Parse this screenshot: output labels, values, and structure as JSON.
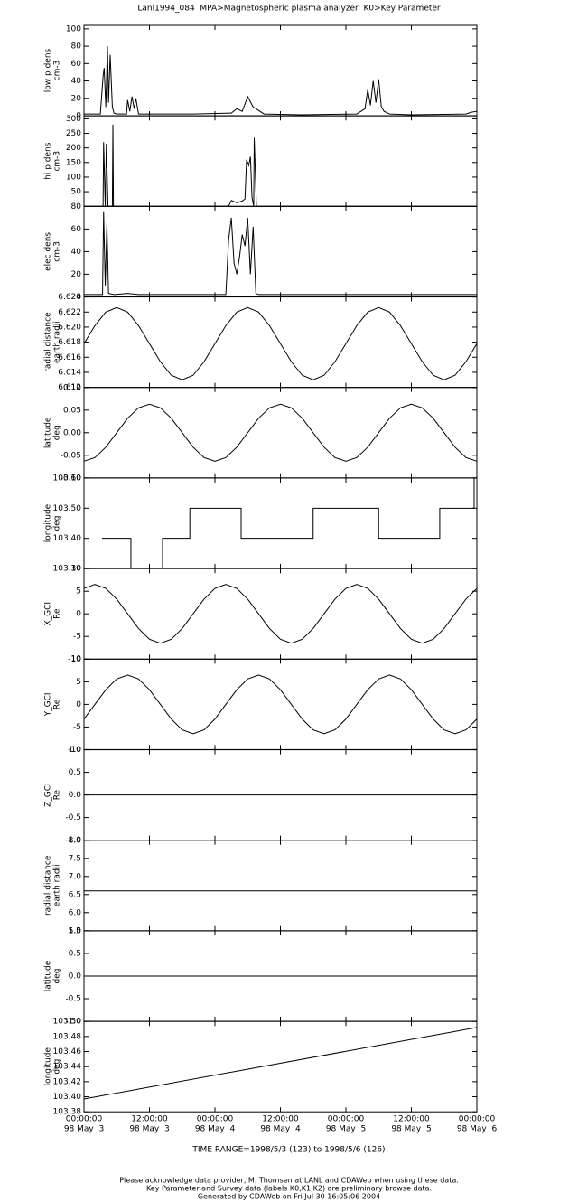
{
  "title": "Lanl1994_084  MPA>Magnetospheric plasma analyzer  K0>Key Parameter",
  "time_axis": {
    "xlim": [
      0,
      72
    ],
    "xticks": [
      {
        "value": 0,
        "label": [
          "00:00:00",
          "98 May  3"
        ]
      },
      {
        "value": 12,
        "label": [
          "12:00:00",
          "98 May  3"
        ]
      },
      {
        "value": 24,
        "label": [
          "00:00:00",
          "98 May  4"
        ]
      },
      {
        "value": 36,
        "label": [
          "12:00:00",
          "98 May  4"
        ]
      },
      {
        "value": 48,
        "label": [
          "00:00:00",
          "98 May  5"
        ]
      },
      {
        "value": 60,
        "label": [
          "12:00:00",
          "98 May  5"
        ]
      },
      {
        "value": 72,
        "label": [
          "00:00:00",
          "98 May  6"
        ]
      }
    ]
  },
  "chart_data": [
    {
      "type": "line",
      "ylabel": [
        "low p dens",
        "cm-3"
      ],
      "ylim": [
        0,
        104
      ],
      "yticks": [
        0,
        20,
        40,
        60,
        80,
        100
      ],
      "x": [
        0,
        3,
        3.5,
        3.7,
        4,
        4.3,
        4.5,
        4.8,
        5.2,
        5.5,
        6,
        7.8,
        8,
        8.4,
        8.8,
        9.2,
        9.5,
        10,
        20,
        27,
        28,
        29,
        30,
        31,
        32,
        33,
        40,
        50,
        51.5,
        52,
        52.5,
        53,
        53.5,
        54,
        54.5,
        55,
        56,
        60,
        70,
        71,
        72
      ],
      "values": [
        2,
        2,
        45,
        55,
        10,
        80,
        15,
        70,
        10,
        3,
        2,
        2,
        18,
        5,
        22,
        8,
        20,
        2,
        2,
        3,
        8,
        5,
        22,
        10,
        6,
        2,
        1,
        2,
        8,
        30,
        12,
        40,
        15,
        42,
        10,
        5,
        2,
        1,
        2,
        4,
        5
      ]
    },
    {
      "type": "line",
      "ylabel": [
        "hi p dens",
        "cm-3"
      ],
      "ylim": [
        0,
        310
      ],
      "yticks": [
        50,
        100,
        150,
        200,
        250,
        300
      ],
      "x": [
        0,
        3.5,
        3.6,
        3.9,
        4.1,
        4.4,
        5.2,
        5.3,
        5.4,
        26.5,
        27,
        28,
        29,
        29.5,
        29.8,
        30.2,
        30.5,
        30.8,
        31.1,
        31.2,
        31.6,
        31.7,
        31.8,
        72
      ],
      "values": [
        0,
        0,
        220,
        0,
        215,
        0,
        0,
        280,
        0,
        0,
        20,
        12,
        18,
        25,
        160,
        140,
        170,
        30,
        0,
        235,
        0,
        0,
        0,
        0
      ]
    },
    {
      "type": "line",
      "ylabel": [
        "elec dens",
        "cm-3"
      ],
      "ylim": [
        0,
        80
      ],
      "yticks": [
        0,
        20,
        40,
        60,
        80
      ],
      "x": [
        0,
        3.4,
        3.6,
        3.9,
        4.2,
        4.5,
        5.5,
        8,
        10,
        26,
        26.5,
        27,
        27.5,
        28,
        28.5,
        29,
        29.5,
        30,
        30.5,
        31,
        31.5,
        32,
        40,
        72
      ],
      "values": [
        2,
        2,
        75,
        10,
        65,
        3,
        2,
        3,
        2,
        2,
        50,
        70,
        30,
        20,
        35,
        55,
        45,
        70,
        20,
        62,
        3,
        2,
        2,
        2
      ]
    },
    {
      "type": "line",
      "ylabel": [
        "radial distance",
        "earth radii"
      ],
      "ylim": [
        6.612,
        6.624
      ],
      "yticks": [
        6.612,
        6.614,
        6.616,
        6.618,
        {
          "value": 6.62,
          "label": "6.620"
        },
        6.622,
        6.624
      ],
      "x": [
        0,
        2,
        4,
        6,
        8,
        10,
        12,
        14,
        16,
        18,
        20,
        22,
        24,
        26,
        28,
        30,
        32,
        34,
        36,
        38,
        40,
        42,
        44,
        46,
        48,
        50,
        52,
        54,
        56,
        58,
        60,
        62,
        64,
        66,
        68,
        70,
        72
      ],
      "values": [
        6.6178,
        6.6202,
        6.622,
        6.6226,
        6.622,
        6.6202,
        6.6178,
        6.6154,
        6.6136,
        6.613,
        6.6136,
        6.6154,
        6.6178,
        6.6202,
        6.622,
        6.6226,
        6.622,
        6.6202,
        6.6178,
        6.6154,
        6.6136,
        6.613,
        6.6136,
        6.6154,
        6.6178,
        6.6202,
        6.622,
        6.6226,
        6.622,
        6.6202,
        6.6178,
        6.6154,
        6.6136,
        6.613,
        6.6136,
        6.6154,
        6.6178
      ]
    },
    {
      "type": "line",
      "ylabel": [
        "latitude",
        "deg"
      ],
      "ylim": [
        -0.1,
        0.1
      ],
      "yticks": [
        {
          "value": -0.1,
          "label": "-0.10"
        },
        -0.05,
        {
          "value": 0,
          "label": "0.00"
        },
        0.05,
        {
          "value": 0.1,
          "label": "0.10"
        }
      ],
      "x": [
        0,
        2,
        4,
        6,
        8,
        10,
        12,
        14,
        16,
        18,
        20,
        22,
        24,
        26,
        28,
        30,
        32,
        34,
        36,
        38,
        40,
        42,
        44,
        46,
        48,
        50,
        52,
        54,
        56,
        58,
        60,
        62,
        64,
        66,
        68,
        70,
        72
      ],
      "values": [
        -0.063,
        -0.055,
        -0.032,
        0,
        0.032,
        0.055,
        0.063,
        0.055,
        0.032,
        0,
        -0.032,
        -0.055,
        -0.063,
        -0.055,
        -0.032,
        0,
        0.032,
        0.055,
        0.063,
        0.055,
        0.032,
        0,
        -0.032,
        -0.055,
        -0.063,
        -0.055,
        -0.032,
        0,
        0.032,
        0.055,
        0.063,
        0.055,
        0.032,
        0,
        -0.032,
        -0.055,
        -0.063
      ]
    },
    {
      "type": "line",
      "ylabel": [
        "longitude",
        "deg"
      ],
      "ylim": [
        103.3,
        103.6
      ],
      "yticks": [
        {
          "value": 103.3,
          "label": "103.30"
        },
        {
          "value": 103.4,
          "label": "103.40"
        },
        {
          "value": 103.5,
          "label": "103.50"
        },
        {
          "value": 103.6,
          "label": "103.60"
        }
      ],
      "x": [
        3.3,
        8.6,
        8.6,
        14.4,
        14.4,
        19.4,
        19.4,
        28.8,
        28.8,
        42,
        42,
        54,
        54,
        65.2,
        65.2,
        71.5,
        71.5,
        72
      ],
      "values": [
        103.4,
        103.4,
        103.3,
        103.3,
        103.4,
        103.4,
        103.5,
        103.5,
        103.4,
        103.4,
        103.5,
        103.5,
        103.4,
        103.4,
        103.5,
        103.5,
        103.6,
        103.6
      ]
    },
    {
      "type": "line",
      "ylabel": [
        "X_GCI",
        "Re"
      ],
      "ylim": [
        -10,
        10
      ],
      "yticks": [
        -10,
        -5,
        0,
        5,
        10
      ],
      "x": [
        0,
        2,
        4,
        6,
        8,
        10,
        12,
        14,
        16,
        18,
        20,
        22,
        24,
        26,
        28,
        30,
        32,
        34,
        36,
        38,
        40,
        42,
        44,
        46,
        48,
        50,
        52,
        54,
        56,
        58,
        60,
        62,
        64,
        66,
        68,
        70,
        72
      ],
      "values": [
        5.63,
        6.5,
        5.63,
        3.25,
        0,
        -3.25,
        -5.63,
        -6.5,
        -5.63,
        -3.25,
        0,
        3.25,
        5.63,
        6.5,
        5.63,
        3.25,
        0,
        -3.25,
        -5.63,
        -6.5,
        -5.63,
        -3.25,
        0,
        3.25,
        5.63,
        6.5,
        5.63,
        3.25,
        0,
        -3.25,
        -5.63,
        -6.5,
        -5.63,
        -3.25,
        0,
        3.25,
        5.63
      ]
    },
    {
      "type": "line",
      "ylabel": [
        "Y_GCI",
        "Re"
      ],
      "ylim": [
        -10,
        10
      ],
      "yticks": [
        -10,
        -5,
        0,
        5,
        10
      ],
      "x": [
        0,
        2,
        4,
        6,
        8,
        10,
        12,
        14,
        16,
        18,
        20,
        22,
        24,
        26,
        28,
        30,
        32,
        34,
        36,
        38,
        40,
        42,
        44,
        46,
        48,
        50,
        52,
        54,
        56,
        58,
        60,
        62,
        64,
        66,
        68,
        70,
        72
      ],
      "values": [
        -3.25,
        0,
        3.25,
        5.63,
        6.5,
        5.63,
        3.25,
        0,
        -3.25,
        -5.63,
        -6.5,
        -5.63,
        -3.25,
        0,
        3.25,
        5.63,
        6.5,
        5.63,
        3.25,
        0,
        -3.25,
        -5.63,
        -6.5,
        -5.63,
        -3.25,
        0,
        3.25,
        5.63,
        6.5,
        5.63,
        3.25,
        0,
        -3.25,
        -5.63,
        -6.5,
        -5.63,
        -3.25
      ]
    },
    {
      "type": "line",
      "ylabel": [
        "Z_GCI",
        "Re"
      ],
      "ylim": [
        -1,
        1
      ],
      "yticks": [
        {
          "value": -1,
          "label": "-1.0"
        },
        -0.5,
        {
          "value": 0,
          "label": "0.0"
        },
        0.5,
        {
          "value": 1,
          "label": "1.0"
        }
      ],
      "x": [
        0,
        72
      ],
      "values": [
        0,
        0
      ]
    },
    {
      "type": "line",
      "ylabel": [
        "radial distance",
        "earth radii"
      ],
      "ylim": [
        5.5,
        8
      ],
      "yticks": [
        5.5,
        {
          "value": 6,
          "label": "6.0"
        },
        6.5,
        {
          "value": 7,
          "label": "7.0"
        },
        7.5,
        {
          "value": 8,
          "label": "8.0"
        }
      ],
      "x": [
        0,
        72
      ],
      "values": [
        6.6,
        6.6
      ]
    },
    {
      "type": "line",
      "ylabel": [
        "latitude",
        "deg"
      ],
      "ylim": [
        -1,
        1
      ],
      "yticks": [
        {
          "value": -1,
          "label": "-1.0"
        },
        -0.5,
        {
          "value": 0,
          "label": "0.0"
        },
        0.5,
        {
          "value": 1,
          "label": "1.0"
        }
      ],
      "x": [
        0,
        72
      ],
      "values": [
        0,
        0
      ]
    },
    {
      "type": "line",
      "ylabel": [
        "longitude",
        "deg"
      ],
      "ylim": [
        103.38,
        103.5
      ],
      "yticks": [
        103.38,
        {
          "value": 103.4,
          "label": "103.40"
        },
        103.42,
        103.44,
        103.46,
        103.48,
        {
          "value": 103.5,
          "label": "103.50"
        }
      ],
      "x": [
        0,
        72
      ],
      "values": [
        103.397,
        103.492
      ]
    }
  ],
  "time_range": "TIME RANGE=1998/5/3 (123) to 1998/5/6 (126)",
  "footer": [
    "Please acknowledge data provider, M. Thomsen at LANL and CDAWeb when using these data.",
    "Key Parameter and Survey data (labels K0,K1,K2) are preliminary browse data.",
    "Generated by CDAWeb on Fri Jul 30 16:05:06 2004"
  ]
}
